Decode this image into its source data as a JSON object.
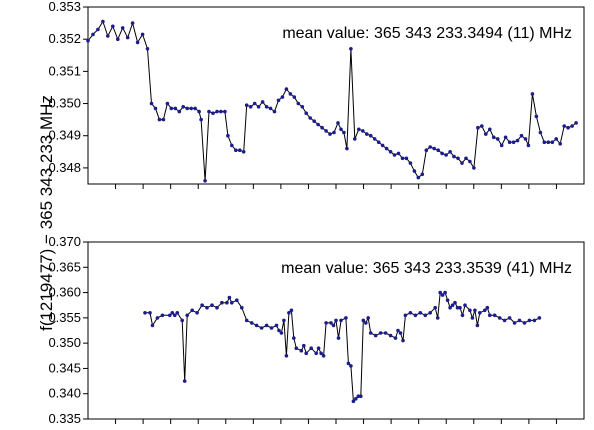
{
  "ylabel": "f(1219477) − 365 343 233 MHz",
  "colors": {
    "series": "#1c1c8c",
    "line": "#000000",
    "axis": "#000000"
  },
  "chart_data": [
    {
      "type": "line",
      "annotation": "mean value: 365 343 233.3494 (11) MHz",
      "ylim": [
        0.3475,
        0.353
      ],
      "xlim": [
        0,
        100
      ],
      "yticks": [
        0.348,
        0.349,
        0.35,
        0.351,
        0.352,
        0.353
      ],
      "ytick_labels": [
        "0.348",
        "0.349",
        "0.350",
        "0.351",
        "0.352",
        "0.353"
      ],
      "x_minor_ticks": 18,
      "grid": false,
      "series": [
        {
          "points": [
            [
              0.0,
              0.35195
            ],
            [
              1.0,
              0.35215
            ],
            [
              2.0,
              0.3523
            ],
            [
              3.0,
              0.35255
            ],
            [
              4.0,
              0.3521
            ],
            [
              5.0,
              0.3524
            ],
            [
              6.0,
              0.352
            ],
            [
              7.0,
              0.35235
            ],
            [
              8.0,
              0.35205
            ],
            [
              9.0,
              0.3525
            ],
            [
              10.0,
              0.3519
            ],
            [
              11.0,
              0.35215
            ],
            [
              12.0,
              0.3517
            ],
            [
              12.8,
              0.35
            ],
            [
              13.6,
              0.34985
            ],
            [
              14.4,
              0.3495
            ],
            [
              15.2,
              0.3495
            ],
            [
              16.0,
              0.35
            ],
            [
              16.8,
              0.34985
            ],
            [
              17.6,
              0.34985
            ],
            [
              18.4,
              0.34975
            ],
            [
              19.2,
              0.3499
            ],
            [
              20.0,
              0.34985
            ],
            [
              20.8,
              0.34985
            ],
            [
              21.6,
              0.34985
            ],
            [
              22.4,
              0.34975
            ],
            [
              22.8,
              0.3495
            ],
            [
              23.6,
              0.3476
            ],
            [
              24.4,
              0.34975
            ],
            [
              25.2,
              0.3497
            ],
            [
              26.0,
              0.34975
            ],
            [
              26.8,
              0.34975
            ],
            [
              27.6,
              0.34975
            ],
            [
              28.2,
              0.349
            ],
            [
              29.0,
              0.3487
            ],
            [
              29.8,
              0.34855
            ],
            [
              30.6,
              0.34855
            ],
            [
              31.4,
              0.3485
            ],
            [
              32.0,
              0.34995
            ],
            [
              32.8,
              0.3499
            ],
            [
              33.6,
              0.35
            ],
            [
              34.4,
              0.3499
            ],
            [
              35.2,
              0.35005
            ],
            [
              36.0,
              0.3499
            ],
            [
              36.8,
              0.34985
            ],
            [
              37.6,
              0.34975
            ],
            [
              38.4,
              0.3501
            ],
            [
              39.2,
              0.3502
            ],
            [
              40.0,
              0.35045
            ],
            [
              40.8,
              0.3503
            ],
            [
              41.6,
              0.3502
            ],
            [
              42.4,
              0.35
            ],
            [
              43.2,
              0.3499
            ],
            [
              44.0,
              0.3497
            ],
            [
              44.8,
              0.34955
            ],
            [
              45.6,
              0.34945
            ],
            [
              46.4,
              0.34935
            ],
            [
              47.2,
              0.34925
            ],
            [
              48.0,
              0.34915
            ],
            [
              48.8,
              0.34905
            ],
            [
              49.6,
              0.3491
            ],
            [
              50.4,
              0.3494
            ],
            [
              51.0,
              0.3492
            ],
            [
              51.6,
              0.3491
            ],
            [
              52.2,
              0.3486
            ],
            [
              53.0,
              0.3517
            ],
            [
              53.8,
              0.3489
            ],
            [
              54.6,
              0.3492
            ],
            [
              55.4,
              0.34915
            ],
            [
              56.2,
              0.34905
            ],
            [
              57.0,
              0.349
            ],
            [
              57.8,
              0.3489
            ],
            [
              58.6,
              0.3488
            ],
            [
              59.4,
              0.3487
            ],
            [
              60.2,
              0.3486
            ],
            [
              61.0,
              0.3485
            ],
            [
              61.8,
              0.3484
            ],
            [
              62.6,
              0.34845
            ],
            [
              63.4,
              0.3483
            ],
            [
              64.2,
              0.3483
            ],
            [
              65.0,
              0.34815
            ],
            [
              65.8,
              0.3479
            ],
            [
              66.6,
              0.3477
            ],
            [
              67.4,
              0.3478
            ],
            [
              68.2,
              0.34855
            ],
            [
              69.0,
              0.34865
            ],
            [
              69.8,
              0.3486
            ],
            [
              70.6,
              0.34855
            ],
            [
              71.4,
              0.34845
            ],
            [
              72.2,
              0.3484
            ],
            [
              73.0,
              0.3485
            ],
            [
              73.8,
              0.34835
            ],
            [
              74.6,
              0.3483
            ],
            [
              75.4,
              0.34815
            ],
            [
              76.2,
              0.3483
            ],
            [
              77.0,
              0.3482
            ],
            [
              77.8,
              0.348
            ],
            [
              78.6,
              0.34925
            ],
            [
              79.4,
              0.3493
            ],
            [
              80.2,
              0.34905
            ],
            [
              81.0,
              0.3492
            ],
            [
              81.8,
              0.34895
            ],
            [
              82.6,
              0.3489
            ],
            [
              83.4,
              0.3487
            ],
            [
              84.2,
              0.34895
            ],
            [
              85.0,
              0.3488
            ],
            [
              85.8,
              0.3488
            ],
            [
              86.6,
              0.34885
            ],
            [
              87.4,
              0.349
            ],
            [
              88.2,
              0.3489
            ],
            [
              88.8,
              0.3487
            ],
            [
              89.6,
              0.3503
            ],
            [
              90.4,
              0.3496
            ],
            [
              91.2,
              0.3491
            ],
            [
              92.0,
              0.3488
            ],
            [
              92.8,
              0.3488
            ],
            [
              93.6,
              0.3488
            ],
            [
              94.4,
              0.3489
            ],
            [
              95.2,
              0.34875
            ],
            [
              96.0,
              0.3493
            ],
            [
              96.8,
              0.34925
            ],
            [
              97.6,
              0.3493
            ],
            [
              98.4,
              0.3494
            ]
          ]
        }
      ]
    },
    {
      "type": "line",
      "annotation": "mean value: 365 343 233.3539 (41) MHz",
      "ylim": [
        0.335,
        0.37
      ],
      "xlim": [
        0,
        100
      ],
      "yticks": [
        0.335,
        0.34,
        0.345,
        0.35,
        0.355,
        0.36,
        0.365,
        0.37
      ],
      "ytick_labels": [
        "0.335",
        "0.340",
        "0.345",
        "0.350",
        "0.355",
        "0.360",
        "0.365",
        "0.370"
      ],
      "x_minor_ticks": 18,
      "grid": false,
      "series": [
        {
          "points": [
            [
              11.5,
              0.356
            ],
            [
              12.5,
              0.356
            ],
            [
              13.0,
              0.3535
            ],
            [
              14.0,
              0.355
            ],
            [
              15.0,
              0.3555
            ],
            [
              16.5,
              0.3555
            ],
            [
              17.0,
              0.356
            ],
            [
              17.5,
              0.3555
            ],
            [
              18.0,
              0.356
            ],
            [
              19.0,
              0.3545
            ],
            [
              19.5,
              0.3425
            ],
            [
              20.0,
              0.3555
            ],
            [
              21.0,
              0.3565
            ],
            [
              22.0,
              0.356
            ],
            [
              23.0,
              0.3575
            ],
            [
              24.0,
              0.357
            ],
            [
              25.0,
              0.3575
            ],
            [
              26.0,
              0.357
            ],
            [
              27.0,
              0.358
            ],
            [
              28.0,
              0.358
            ],
            [
              28.5,
              0.359
            ],
            [
              29.0,
              0.358
            ],
            [
              30.0,
              0.3585
            ],
            [
              31.0,
              0.357
            ],
            [
              32.0,
              0.3545
            ],
            [
              33.0,
              0.354
            ],
            [
              34.0,
              0.3535
            ],
            [
              35.0,
              0.353
            ],
            [
              36.0,
              0.3535
            ],
            [
              37.0,
              0.353
            ],
            [
              38.0,
              0.3535
            ],
            [
              38.5,
              0.3525
            ],
            [
              39.0,
              0.352
            ],
            [
              39.5,
              0.3545
            ],
            [
              40.0,
              0.3475
            ],
            [
              40.5,
              0.356
            ],
            [
              41.0,
              0.3565
            ],
            [
              41.5,
              0.351
            ],
            [
              42.0,
              0.349
            ],
            [
              43.0,
              0.3485
            ],
            [
              43.5,
              0.3495
            ],
            [
              44.0,
              0.348
            ],
            [
              45.0,
              0.349
            ],
            [
              46.0,
              0.348
            ],
            [
              46.5,
              0.349
            ],
            [
              47.0,
              0.348
            ],
            [
              47.5,
              0.3475
            ],
            [
              48.0,
              0.354
            ],
            [
              49.0,
              0.354
            ],
            [
              49.5,
              0.3535
            ],
            [
              50.0,
              0.3545
            ],
            [
              50.5,
              0.351
            ],
            [
              51.0,
              0.3545
            ],
            [
              52.0,
              0.355
            ],
            [
              52.5,
              0.346
            ],
            [
              53.0,
              0.3455
            ],
            [
              53.5,
              0.3385
            ],
            [
              54.0,
              0.339
            ],
            [
              54.5,
              0.3395
            ],
            [
              55.0,
              0.3395
            ],
            [
              55.5,
              0.3545
            ],
            [
              56.0,
              0.354
            ],
            [
              56.5,
              0.355
            ],
            [
              57.0,
              0.352
            ],
            [
              58.0,
              0.3515
            ],
            [
              59.0,
              0.352
            ],
            [
              60.0,
              0.352
            ],
            [
              61.0,
              0.3515
            ],
            [
              62.0,
              0.351
            ],
            [
              62.5,
              0.3525
            ],
            [
              63.0,
              0.352
            ],
            [
              63.5,
              0.3505
            ],
            [
              64.0,
              0.3555
            ],
            [
              65.0,
              0.356
            ],
            [
              66.0,
              0.3555
            ],
            [
              67.0,
              0.356
            ],
            [
              68.0,
              0.3555
            ],
            [
              69.0,
              0.356
            ],
            [
              70.0,
              0.357
            ],
            [
              70.5,
              0.355
            ],
            [
              71.0,
              0.36
            ],
            [
              71.5,
              0.3595
            ],
            [
              72.0,
              0.36
            ],
            [
              72.5,
              0.3585
            ],
            [
              73.0,
              0.357
            ],
            [
              73.5,
              0.3575
            ],
            [
              74.0,
              0.358
            ],
            [
              74.5,
              0.357
            ],
            [
              75.0,
              0.357
            ],
            [
              75.5,
              0.3555
            ],
            [
              76.0,
              0.3575
            ],
            [
              77.0,
              0.3565
            ],
            [
              77.5,
              0.355
            ],
            [
              78.0,
              0.3565
            ],
            [
              78.5,
              0.3535
            ],
            [
              79.0,
              0.356
            ],
            [
              80.0,
              0.3565
            ],
            [
              80.5,
              0.357
            ],
            [
              81.0,
              0.3555
            ],
            [
              82.0,
              0.3555
            ],
            [
              83.0,
              0.355
            ],
            [
              84.0,
              0.3545
            ],
            [
              85.0,
              0.355
            ],
            [
              86.0,
              0.354
            ],
            [
              87.0,
              0.3545
            ],
            [
              88.0,
              0.354
            ],
            [
              89.0,
              0.3545
            ],
            [
              90.0,
              0.3545
            ],
            [
              91.0,
              0.355
            ]
          ]
        }
      ]
    }
  ]
}
